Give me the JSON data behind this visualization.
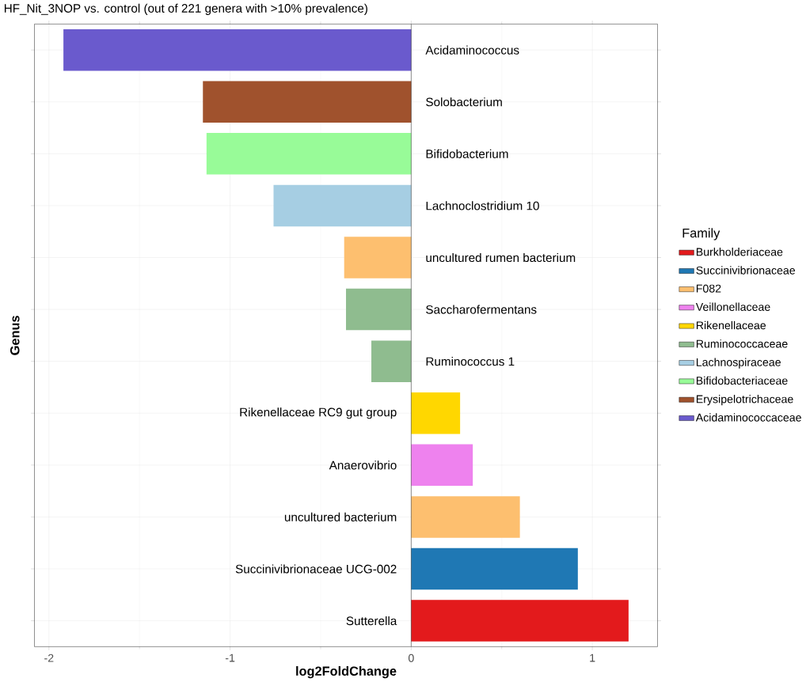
{
  "chart_data": {
    "type": "bar",
    "orientation": "horizontal",
    "title": "HF_Nit_3NOP vs. control (out of 221 genera with >10% prevalence)",
    "xlabel": "log2FoldChange",
    "ylabel": "Genus",
    "legend_title": "Family",
    "legend": "right",
    "grid": true,
    "categories": [
      "Acidaminococcus",
      "Solobacterium",
      "Bifidobacterium",
      "Lachnoclostridium 10",
      "uncultured rumen bacterium",
      "Saccharofermentans",
      "Ruminococcus 1",
      "Rikenellaceae RC9 gut group",
      "Anaerovibrio",
      "uncultured bacterium",
      "Succinivibrionaceae UCG-002",
      "Sutterella"
    ],
    "xlim": [
      -2.08,
      1.36
    ],
    "xticks": [
      -2,
      -1,
      0,
      1
    ],
    "series": [
      {
        "name": "Burkholderiaceae",
        "color": "#e31a1c",
        "values": [
          null,
          null,
          null,
          null,
          null,
          null,
          null,
          null,
          null,
          null,
          null,
          1.2
        ]
      },
      {
        "name": "Succinivibrionaceae",
        "color": "#1f78b4",
        "values": [
          null,
          null,
          null,
          null,
          null,
          null,
          null,
          null,
          null,
          null,
          0.92,
          null
        ]
      },
      {
        "name": "F082",
        "color": "#fdbf6f",
        "values": [
          null,
          null,
          null,
          null,
          -0.37,
          null,
          null,
          null,
          null,
          0.6,
          null,
          null
        ]
      },
      {
        "name": "Veillonellaceae",
        "color": "#ee82ee",
        "values": [
          null,
          null,
          null,
          null,
          null,
          null,
          null,
          null,
          0.34,
          null,
          null,
          null
        ]
      },
      {
        "name": "Rikenellaceae",
        "color": "#ffd700",
        "values": [
          null,
          null,
          null,
          null,
          null,
          null,
          null,
          0.27,
          null,
          null,
          null,
          null
        ]
      },
      {
        "name": "Ruminococcaceae",
        "color": "#8fbc8f",
        "values": [
          null,
          null,
          null,
          null,
          null,
          -0.36,
          -0.22,
          null,
          null,
          null,
          null,
          null
        ]
      },
      {
        "name": "Lachnospiraceae",
        "color": "#a6cee3",
        "values": [
          null,
          null,
          null,
          -0.76,
          null,
          null,
          null,
          null,
          null,
          null,
          null,
          null
        ]
      },
      {
        "name": "Bifidobacteriaceae",
        "color": "#98fb98",
        "values": [
          null,
          null,
          -1.13,
          null,
          null,
          null,
          null,
          null,
          null,
          null,
          null,
          null
        ]
      },
      {
        "name": "Erysipelotrichaceae",
        "color": "#a0522d",
        "values": [
          null,
          -1.15,
          null,
          null,
          null,
          null,
          null,
          null,
          null,
          null,
          null,
          null
        ]
      },
      {
        "name": "Acidaminococcaceae",
        "color": "#6a5acd",
        "values": [
          -1.92,
          null,
          null,
          null,
          null,
          null,
          null,
          null,
          null,
          null,
          null,
          null
        ]
      }
    ]
  }
}
